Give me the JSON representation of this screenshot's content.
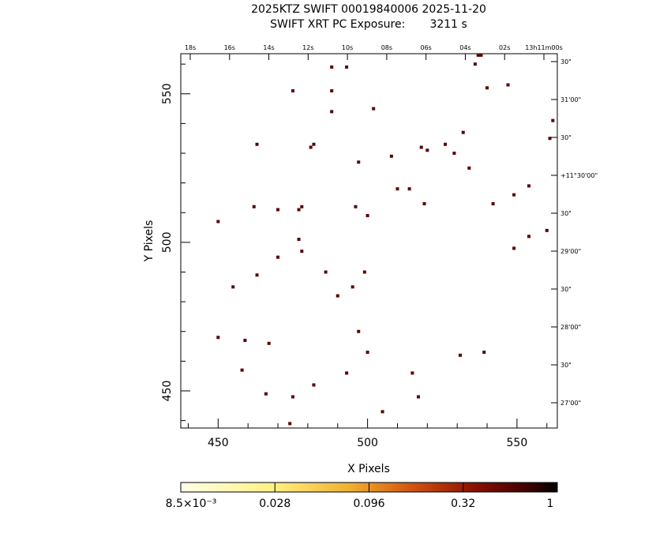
{
  "title_line1": "2025KTZ SWIFT 00019840006 2025-11-20",
  "title_line2": "SWIFT XRT PC Exposure:       3211 s",
  "chart_data": {
    "type": "scatter",
    "xlabel": "X Pixels",
    "ylabel": "Y Pixels",
    "xlim": [
      437.5,
      563.5
    ],
    "ylim": [
      437.5,
      563.5
    ],
    "x_ticks": [
      450,
      500,
      550
    ],
    "y_ticks": [
      450,
      500,
      550
    ],
    "ra_ticks": [
      "18s",
      "16s",
      "14s",
      "12s",
      "10s",
      "08s",
      "06s",
      "04s",
      "02s",
      "13h11m00s"
    ],
    "dec_ticks": [
      "30\"",
      "31'00\"",
      "30\"",
      "+11°30'00\"",
      "30\"",
      "29'00\"",
      "30\"",
      "28'00\"",
      "30\"",
      "27'00\""
    ],
    "grid": false,
    "point_color": "#5a0000",
    "points": [
      [
        488,
        559
      ],
      [
        493,
        559
      ],
      [
        536,
        560
      ],
      [
        537,
        563
      ],
      [
        538,
        563
      ],
      [
        475,
        551
      ],
      [
        488,
        551
      ],
      [
        540,
        552
      ],
      [
        547,
        553
      ],
      [
        488,
        544
      ],
      [
        502,
        545
      ],
      [
        562,
        541
      ],
      [
        532,
        537
      ],
      [
        561,
        535
      ],
      [
        463,
        533
      ],
      [
        481,
        532
      ],
      [
        482,
        533
      ],
      [
        518,
        532
      ],
      [
        520,
        531
      ],
      [
        526,
        533
      ],
      [
        529,
        530
      ],
      [
        508,
        529
      ],
      [
        497,
        527
      ],
      [
        534,
        525
      ],
      [
        554,
        519
      ],
      [
        510,
        518
      ],
      [
        514,
        518
      ],
      [
        549,
        516
      ],
      [
        519,
        513
      ],
      [
        542,
        513
      ],
      [
        462,
        512
      ],
      [
        470,
        511
      ],
      [
        477,
        511
      ],
      [
        478,
        512
      ],
      [
        496,
        512
      ],
      [
        500,
        509
      ],
      [
        450,
        507
      ],
      [
        560,
        504
      ],
      [
        554,
        502
      ],
      [
        477,
        501
      ],
      [
        549,
        498
      ],
      [
        478,
        497
      ],
      [
        470,
        495
      ],
      [
        486,
        490
      ],
      [
        499,
        490
      ],
      [
        463,
        489
      ],
      [
        455,
        485
      ],
      [
        495,
        485
      ],
      [
        490,
        482
      ],
      [
        497,
        470
      ],
      [
        450,
        468
      ],
      [
        459,
        467
      ],
      [
        467,
        466
      ],
      [
        500,
        463
      ],
      [
        531,
        462
      ],
      [
        539,
        463
      ],
      [
        458,
        457
      ],
      [
        493,
        456
      ],
      [
        515,
        456
      ],
      [
        482,
        452
      ],
      [
        466,
        449
      ],
      [
        475,
        448
      ],
      [
        517,
        448
      ],
      [
        505,
        443
      ],
      [
        474,
        439
      ]
    ],
    "colorbar": {
      "scale": "log",
      "tick_labels": [
        "8.5×10⁻³",
        "0.028",
        "0.096",
        "0.32",
        "1"
      ]
    }
  }
}
